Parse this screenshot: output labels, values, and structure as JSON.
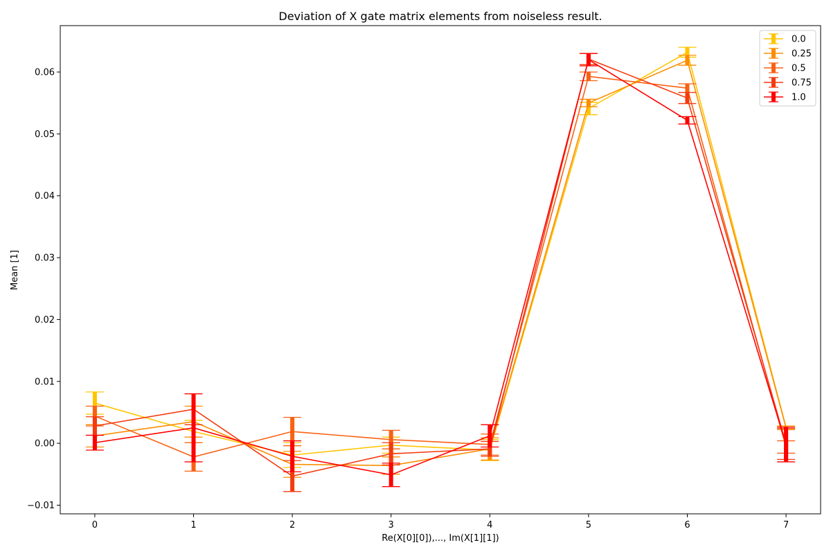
{
  "chart_data": {
    "type": "line",
    "title": "Deviation of X gate matrix elements from noiseless result.",
    "xlabel": "Re(X[0][0]),..., Im(X[1][1])",
    "ylabel": "Mean [1]",
    "x": [
      0,
      1,
      2,
      3,
      4,
      5,
      6,
      7
    ],
    "xlim": [
      -0.35,
      7.35
    ],
    "ylim": [
      -0.0114,
      0.0675
    ],
    "xticks": [
      0,
      1,
      2,
      3,
      4,
      5,
      6,
      7
    ],
    "yticks": [
      -0.01,
      0.0,
      0.01,
      0.02,
      0.03,
      0.04,
      0.05,
      0.06
    ],
    "ytick_labels": [
      "−0.01",
      "0.00",
      "0.01",
      "0.02",
      "0.03",
      "0.04",
      "0.05",
      "0.06"
    ],
    "grid": false,
    "legend_position": "top-right",
    "error_bars": true,
    "series": [
      {
        "name": "0.0",
        "color": "#ffc400",
        "values": [
          0.0065,
          0.0019,
          -0.0019,
          -0.0003,
          -0.0011,
          0.0541,
          0.0632,
          0.0026
        ],
        "errors": [
          0.0018,
          0.0018,
          0.002,
          0.0013,
          0.0017,
          0.001,
          0.0008,
          0.0002
        ]
      },
      {
        "name": "0.25",
        "color": "#fc8d00",
        "values": [
          0.0012,
          0.0035,
          -0.0034,
          -0.0036,
          -0.0009,
          0.055,
          0.0619,
          0.0025
        ],
        "errors": [
          0.0018,
          0.0025,
          0.0021,
          0.0014,
          0.0018,
          0.0006,
          0.0008,
          0.0003
        ]
      },
      {
        "name": "0.5",
        "color": "#f96112",
        "values": [
          0.0044,
          -0.0022,
          0.0019,
          0.0006,
          -0.0002,
          0.0593,
          0.0574,
          -0.0006
        ],
        "errors": [
          0.0016,
          0.0023,
          0.0023,
          0.0015,
          0.0017,
          0.0007,
          0.0007,
          0.001
        ]
      },
      {
        "name": "0.75",
        "color": "#f43a0f",
        "values": [
          0.0028,
          0.0055,
          -0.0053,
          -0.0017,
          -0.0009,
          0.0621,
          0.0558,
          -0.0001
        ],
        "errors": [
          0.0015,
          0.0025,
          0.0025,
          0.0018,
          0.0012,
          0.0009,
          0.0009,
          0.0025
        ]
      },
      {
        "name": "1.0",
        "color": "#ff0000",
        "values": [
          0.0001,
          0.0025,
          -0.0021,
          -0.0051,
          0.0012,
          0.062,
          0.0522,
          -0.0002
        ],
        "errors": [
          0.0012,
          0.0055,
          0.0025,
          0.0019,
          0.0018,
          0.001,
          0.0006,
          0.0028
        ]
      }
    ]
  }
}
